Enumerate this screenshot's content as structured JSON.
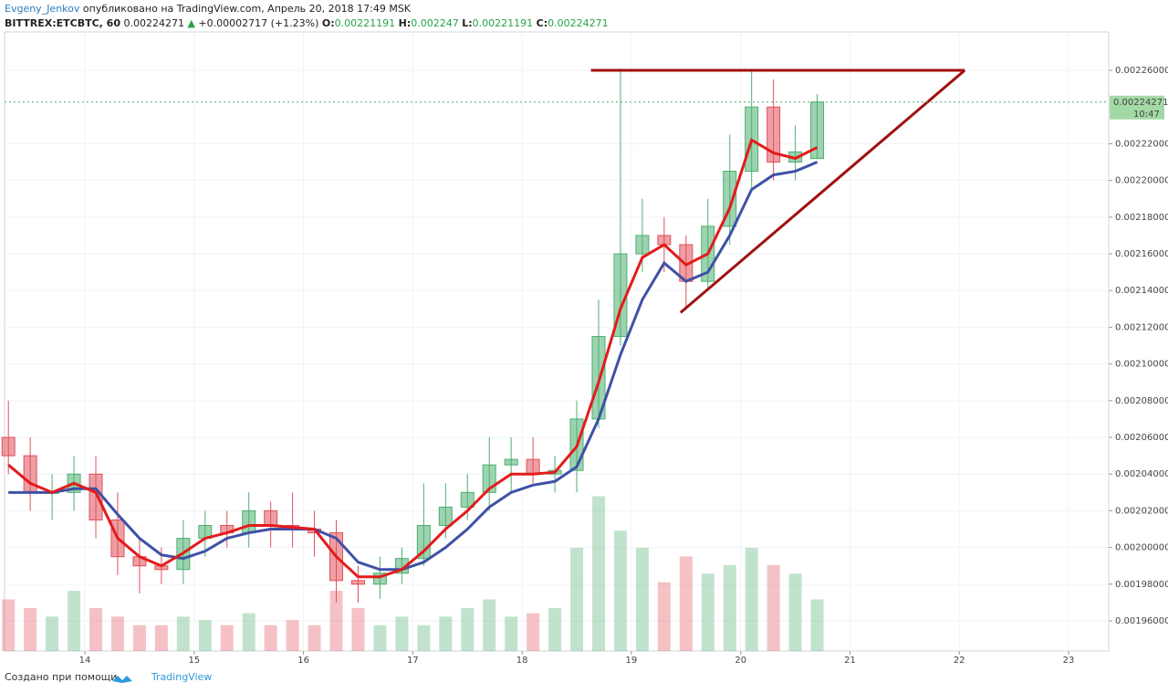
{
  "header": {
    "author": "Evgeny_Jenkov",
    "published": "опубликовано на TradingView.com, Апрель 20, 2018 17:49 MSK",
    "symbol": "BITTREX:ETCBTC, 60",
    "arrow": "▲",
    "change": "+0.00002717 (+1.23%)",
    "o_label": "O:",
    "h_label": "H:",
    "l_label": "L:",
    "c_label": "C:"
  },
  "footer": {
    "made_with": "Создано при помощи",
    "brand": "TradingView"
  },
  "chart_data": {
    "type": "candlestick",
    "x": [
      13.3,
      13.5,
      13.7,
      13.9,
      14.1,
      14.3,
      14.5,
      14.7,
      14.9,
      15.1,
      15.3,
      15.5,
      15.7,
      15.9,
      16.1,
      16.3,
      16.5,
      16.7,
      16.9,
      17.1,
      17.3,
      17.5,
      17.7,
      17.9,
      18.1,
      18.3,
      18.5,
      18.7,
      18.9,
      19.1,
      19.3,
      19.5,
      19.7,
      19.9,
      20.1,
      20.3,
      20.5,
      20.7
    ],
    "open": [
      0.00206,
      0.00205,
      0.00203,
      0.00203,
      0.00204,
      0.002015,
      0.001995,
      0.00199,
      0.001988,
      0.002005,
      0.002012,
      0.002008,
      0.00202,
      0.002012,
      0.00201,
      0.002008,
      0.001982,
      0.00198,
      0.001986,
      0.001994,
      0.002012,
      0.002022,
      0.00203,
      0.002045,
      0.002048,
      0.00204,
      0.002042,
      0.00207,
      0.002115,
      0.00216,
      0.00217,
      0.002165,
      0.002145,
      0.002175,
      0.002205,
      0.00224,
      0.00221,
      0.00221191
    ],
    "high": [
      0.00208,
      0.00206,
      0.00204,
      0.00205,
      0.00205,
      0.00203,
      0.002005,
      0.002,
      0.002015,
      0.00202,
      0.00202,
      0.00203,
      0.002025,
      0.00203,
      0.00202,
      0.002015,
      0.00199,
      0.001995,
      0.002,
      0.002035,
      0.002035,
      0.00204,
      0.00206,
      0.00206,
      0.00206,
      0.00205,
      0.00208,
      0.002135,
      0.00226,
      0.00219,
      0.00218,
      0.00217,
      0.00219,
      0.002225,
      0.00226,
      0.002255,
      0.00223,
      0.002247
    ],
    "low": [
      0.00204,
      0.00202,
      0.002015,
      0.00202,
      0.002005,
      0.001985,
      0.001975,
      0.00198,
      0.00198,
      0.001995,
      0.002,
      0.002,
      0.002,
      0.002,
      0.001995,
      0.00197,
      0.00197,
      0.001972,
      0.00198,
      0.00199,
      0.002005,
      0.002015,
      0.00202,
      0.00203,
      0.002035,
      0.00203,
      0.00203,
      0.002065,
      0.00211,
      0.00215,
      0.00215,
      0.00213,
      0.00214,
      0.002165,
      0.002195,
      0.0022,
      0.0022,
      0.00221191
    ],
    "close": [
      0.00205,
      0.00203,
      0.00203,
      0.00204,
      0.002015,
      0.001995,
      0.00199,
      0.001988,
      0.002005,
      0.002012,
      0.002008,
      0.00202,
      0.002012,
      0.00201,
      0.002008,
      0.001982,
      0.00198,
      0.001986,
      0.001994,
      0.002012,
      0.002022,
      0.00203,
      0.002045,
      0.002048,
      0.00204,
      0.002042,
      0.00207,
      0.002115,
      0.00216,
      0.00217,
      0.002165,
      0.002145,
      0.002175,
      0.002205,
      0.00224,
      0.00221,
      0.00221554,
      0.00224271
    ],
    "ma_fast": [
      0.002045,
      0.002035,
      0.00203,
      0.002035,
      0.00203,
      0.002005,
      0.001995,
      0.00199,
      0.001997,
      0.002005,
      0.002008,
      0.002012,
      0.002012,
      0.002011,
      0.00201,
      0.001995,
      0.001984,
      0.001984,
      0.001988,
      0.001998,
      0.00201,
      0.00202,
      0.002032,
      0.00204,
      0.00204,
      0.002041,
      0.002055,
      0.00209,
      0.00213,
      0.002158,
      0.002165,
      0.002154,
      0.00216,
      0.002185,
      0.002222,
      0.002215,
      0.002212,
      0.002218
    ],
    "ma_slow": [
      0.00203,
      0.00203,
      0.00203,
      0.002032,
      0.002032,
      0.002018,
      0.002005,
      0.001996,
      0.001994,
      0.001998,
      0.002005,
      0.002008,
      0.00201,
      0.00201,
      0.00201,
      0.002005,
      0.001992,
      0.001988,
      0.001988,
      0.001992,
      0.002,
      0.00201,
      0.002022,
      0.00203,
      0.002034,
      0.002036,
      0.002044,
      0.00207,
      0.002105,
      0.002135,
      0.002155,
      0.002145,
      0.00215,
      0.00217,
      0.002195,
      0.002203,
      0.002205,
      0.00221
    ],
    "volume": [
      30,
      25,
      20,
      35,
      25,
      20,
      15,
      15,
      20,
      18,
      15,
      22,
      15,
      18,
      15,
      35,
      25,
      15,
      20,
      15,
      20,
      25,
      30,
      20,
      22,
      25,
      60,
      90,
      70,
      60,
      40,
      55,
      45,
      50,
      60,
      50,
      45,
      30
    ],
    "volume_lim": [
      0,
      360
    ],
    "up_color": "#4caf70",
    "down_color": "#e0505a",
    "ma_fast_color": "#e31b1b",
    "ma_slow_color": "#3f51a5",
    "countdown": "10:47",
    "trendlines": [
      {
        "x": [
          18.63,
          22.05
        ],
        "y": [
          0.00226,
          0.00226
        ],
        "color": "#a01010"
      },
      {
        "x": [
          19.45,
          22.05
        ],
        "y": [
          0.002128,
          0.00226
        ],
        "color": "#a01010"
      }
    ],
    "xlim": [
      13.265,
      23.367
    ],
    "xticks": [
      14,
      15,
      16,
      17,
      18,
      19,
      20,
      21,
      22,
      23
    ],
    "ylim": [
      0.0019436,
      0.0022809
    ],
    "yticks": [
      {
        "value": 0.00196,
        "label": "0.00196000"
      },
      {
        "value": 0.00198,
        "label": "0.00198000"
      },
      {
        "value": 0.002,
        "label": "0.00200000"
      },
      {
        "value": 0.00202,
        "label": "0.00202000"
      },
      {
        "value": 0.00204,
        "label": "0.00204000"
      },
      {
        "value": 0.00206,
        "label": "0.00206000"
      },
      {
        "value": 0.00208,
        "label": "0.00208000"
      },
      {
        "value": 0.0021,
        "label": "0.00210000"
      },
      {
        "value": 0.00212,
        "label": "0.00212000"
      },
      {
        "value": 0.00214,
        "label": "0.00214000"
      },
      {
        "value": 0.00216,
        "label": "0.00216000"
      },
      {
        "value": 0.00218,
        "label": "0.00218000"
      },
      {
        "value": 0.0022,
        "label": "0.00220000"
      },
      {
        "value": 0.00222,
        "label": "0.00222000"
      },
      {
        "value": 0.00226,
        "label": "0.00226000"
      }
    ],
    "grid": true
  }
}
